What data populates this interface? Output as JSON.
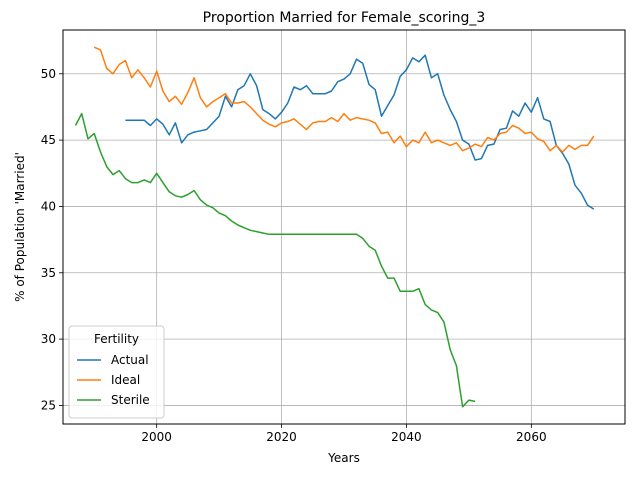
{
  "chart_data": {
    "type": "line",
    "title": "Proportion Married for Female_scoring_3",
    "xlabel": "Years",
    "ylabel": "% of Population 'Married'",
    "xlim": [
      1985,
      2075
    ],
    "ylim": [
      23.6,
      53.3
    ],
    "x_ticks": [
      2000,
      2020,
      2040,
      2060
    ],
    "y_ticks": [
      25,
      30,
      35,
      40,
      45,
      50
    ],
    "grid": true,
    "legend": {
      "title": "Fertility",
      "position": "lower-left"
    },
    "series": [
      {
        "name": "Actual",
        "color": "#1f77b4",
        "x": [
          1995,
          1996,
          1997,
          1998,
          1999,
          2000,
          2001,
          2002,
          2003,
          2004,
          2005,
          2006,
          2007,
          2008,
          2009,
          2010,
          2011,
          2012,
          2013,
          2014,
          2015,
          2016,
          2017,
          2018,
          2019,
          2020,
          2021,
          2022,
          2023,
          2024,
          2025,
          2026,
          2027,
          2028,
          2029,
          2030,
          2031,
          2032,
          2033,
          2034,
          2035,
          2036,
          2037,
          2038,
          2039,
          2040,
          2041,
          2042,
          2043,
          2044,
          2045,
          2046,
          2047,
          2048,
          2049,
          2050,
          2051,
          2052,
          2053,
          2054,
          2055,
          2056,
          2057,
          2058,
          2059,
          2060,
          2061,
          2062,
          2063,
          2064,
          2065,
          2066,
          2067,
          2068,
          2069,
          2070
        ],
        "values": [
          46.5,
          46.5,
          46.5,
          46.5,
          46.1,
          46.6,
          46.2,
          45.4,
          46.3,
          44.8,
          45.4,
          45.6,
          45.7,
          45.8,
          46.3,
          46.8,
          48.3,
          47.5,
          48.8,
          49.1,
          50.0,
          49.1,
          47.3,
          47.0,
          46.6,
          47.1,
          47.8,
          49.0,
          48.8,
          49.1,
          48.5,
          48.5,
          48.5,
          48.7,
          49.4,
          49.6,
          50.0,
          51.1,
          50.8,
          49.2,
          48.8,
          46.8,
          47.6,
          48.4,
          49.8,
          50.3,
          51.2,
          50.9,
          51.4,
          49.7,
          50.0,
          48.4,
          47.3,
          46.4,
          45.0,
          44.7,
          43.5,
          43.6,
          44.6,
          44.7,
          45.8,
          45.9,
          47.2,
          46.8,
          47.8,
          47.1,
          48.2,
          46.6,
          46.4,
          44.6,
          44.0,
          43.2,
          41.6,
          41.0,
          40.1,
          39.8
        ]
      },
      {
        "name": "Ideal",
        "color": "#ff7f0e",
        "x": [
          1990,
          1991,
          1992,
          1993,
          1994,
          1995,
          1996,
          1997,
          1998,
          1999,
          2000,
          2001,
          2002,
          2003,
          2004,
          2005,
          2006,
          2007,
          2008,
          2009,
          2010,
          2011,
          2012,
          2013,
          2014,
          2015,
          2016,
          2017,
          2018,
          2019,
          2020,
          2021,
          2022,
          2023,
          2024,
          2025,
          2026,
          2027,
          2028,
          2029,
          2030,
          2031,
          2032,
          2033,
          2034,
          2035,
          2036,
          2037,
          2038,
          2039,
          2040,
          2041,
          2042,
          2043,
          2044,
          2045,
          2046,
          2047,
          2048,
          2049,
          2050,
          2051,
          2052,
          2053,
          2054,
          2055,
          2056,
          2057,
          2058,
          2059,
          2060,
          2061,
          2062,
          2063,
          2064,
          2065,
          2066,
          2067,
          2068,
          2069,
          2070
        ],
        "values": [
          52.0,
          51.8,
          50.4,
          50.0,
          50.7,
          51.0,
          49.7,
          50.3,
          49.7,
          49.0,
          50.2,
          48.7,
          47.9,
          48.3,
          47.7,
          48.6,
          49.7,
          48.2,
          47.5,
          47.9,
          48.2,
          48.5,
          47.8,
          47.8,
          47.9,
          47.5,
          47.0,
          46.5,
          46.2,
          46.0,
          46.3,
          46.4,
          46.6,
          46.2,
          45.8,
          46.3,
          46.4,
          46.4,
          46.7,
          46.4,
          47.0,
          46.5,
          46.7,
          46.6,
          46.5,
          46.3,
          45.5,
          45.6,
          44.8,
          45.3,
          44.5,
          45.0,
          44.8,
          45.6,
          44.8,
          45.0,
          44.8,
          44.6,
          44.8,
          44.2,
          44.4,
          44.7,
          44.5,
          45.2,
          45.0,
          45.5,
          45.6,
          46.1,
          45.9,
          45.5,
          45.6,
          45.1,
          44.9,
          44.2,
          44.6,
          44.1,
          44.6,
          44.3,
          44.6,
          44.6,
          45.3
        ]
      },
      {
        "name": "Sterile",
        "color": "#2ca02c",
        "x": [
          1987,
          1988,
          1989,
          1990,
          1991,
          1992,
          1993,
          1994,
          1995,
          1996,
          1997,
          1998,
          1999,
          2000,
          2001,
          2002,
          2003,
          2004,
          2005,
          2006,
          2007,
          2008,
          2009,
          2010,
          2011,
          2012,
          2013,
          2014,
          2015,
          2016,
          2017,
          2018,
          2019,
          2020,
          2021,
          2022,
          2023,
          2024,
          2025,
          2026,
          2027,
          2028,
          2029,
          2030,
          2031,
          2032,
          2033,
          2034,
          2035,
          2036,
          2037,
          2038,
          2039,
          2040,
          2041,
          2042,
          2043,
          2044,
          2045,
          2046,
          2047,
          2048,
          2049,
          2050,
          2051
        ],
        "values": [
          46.1,
          47.0,
          45.1,
          45.5,
          44.1,
          43.0,
          42.4,
          42.7,
          42.1,
          41.8,
          41.8,
          42.0,
          41.8,
          42.5,
          41.8,
          41.1,
          40.8,
          40.7,
          40.9,
          41.2,
          40.5,
          40.1,
          39.9,
          39.5,
          39.3,
          38.9,
          38.6,
          38.4,
          38.2,
          38.1,
          38.0,
          37.9,
          37.9,
          37.9,
          37.9,
          37.9,
          37.9,
          37.9,
          37.9,
          37.9,
          37.9,
          37.9,
          37.9,
          37.9,
          37.9,
          37.9,
          37.6,
          37.0,
          36.7,
          35.5,
          34.6,
          34.6,
          33.6,
          33.6,
          33.6,
          33.8,
          32.6,
          32.2,
          32.0,
          31.3,
          29.2,
          28.0,
          24.9,
          25.4,
          25.3
        ]
      }
    ]
  }
}
